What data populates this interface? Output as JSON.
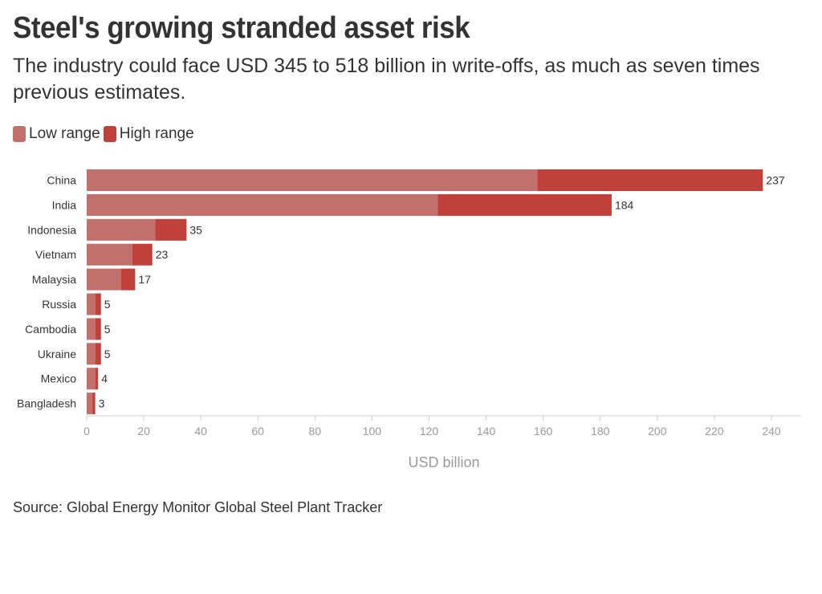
{
  "title": "Steel's growing stranded asset risk",
  "subtitle": "The industry could face USD 345 to 518 billion in write-offs, as much as seven times previous estimates.",
  "source": "Source: Global Energy Monitor Global Steel Plant Tracker",
  "colors": {
    "low": "#c1706b",
    "high": "#c0403a",
    "axis": "#cccccc",
    "tick_text": "#999999",
    "label_text": "#333333"
  },
  "chart_data": {
    "type": "bar",
    "orientation": "horizontal",
    "stacked": true,
    "categories": [
      "China",
      "India",
      "Indonesia",
      "Vietnam",
      "Malaysia",
      "Russia",
      "Cambodia",
      "Ukraine",
      "Mexico",
      "Bangladesh"
    ],
    "series": [
      {
        "name": "Low range",
        "values": [
          158,
          123,
          24,
          16,
          12,
          3,
          3,
          3,
          3,
          2
        ]
      },
      {
        "name": "High range",
        "values": [
          79,
          61,
          11,
          7,
          5,
          2,
          2,
          2,
          1,
          1
        ]
      }
    ],
    "totals": [
      237,
      184,
      35,
      23,
      17,
      5,
      5,
      5,
      4,
      3
    ],
    "xlabel": "USD billion",
    "xlim": [
      0,
      250
    ],
    "xticks": [
      0,
      20,
      40,
      60,
      80,
      100,
      120,
      140,
      160,
      180,
      200,
      220,
      240
    ],
    "legend_position": "top-left",
    "grid": false
  }
}
